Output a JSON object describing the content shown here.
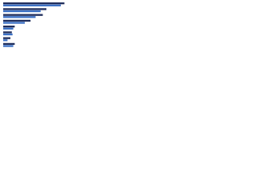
{
  "chart_data": {
    "type": "hbar",
    "categories": [
      null,
      null,
      null,
      null,
      null,
      null,
      null,
      null
    ],
    "series": [
      {
        "color": "#1f2d5c",
        "values": [
          85,
          60,
          55,
          38,
          16,
          12,
          10,
          16
        ]
      },
      {
        "color": "#3a6fc4",
        "values": [
          80,
          52,
          45,
          30,
          14,
          13,
          6,
          14
        ]
      }
    ],
    "xlim": [
      0,
      100
    ]
  }
}
